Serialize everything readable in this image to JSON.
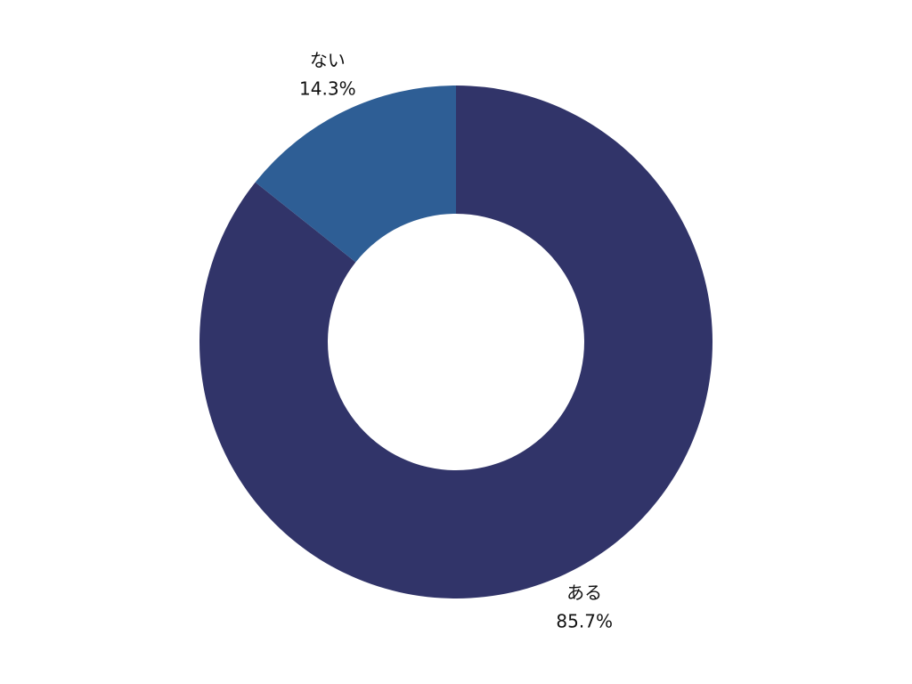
{
  "chart_data": {
    "type": "pie",
    "categories": [
      "ある",
      "ない"
    ],
    "values": [
      85.7,
      14.3
    ],
    "value_labels": [
      "85.7%",
      "14.3%"
    ],
    "colors": [
      "#313469",
      "#2e5e95"
    ]
  }
}
